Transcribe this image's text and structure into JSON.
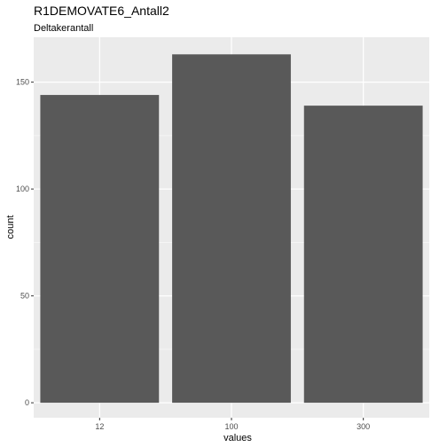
{
  "chart_data": {
    "type": "bar",
    "title": "R1DEMOVATE6_Antall2",
    "subtitle": "Deltakerantall",
    "xlabel": "values",
    "ylabel": "count",
    "categories": [
      "12",
      "100",
      "300"
    ],
    "values": [
      144,
      163,
      139
    ],
    "ylim": [
      -7,
      171
    ],
    "yticks": [
      0,
      50,
      100,
      150
    ],
    "grid": true,
    "panel_color": "#ebebeb",
    "bar_color": "#595959",
    "grid_color": "#ffffff"
  }
}
